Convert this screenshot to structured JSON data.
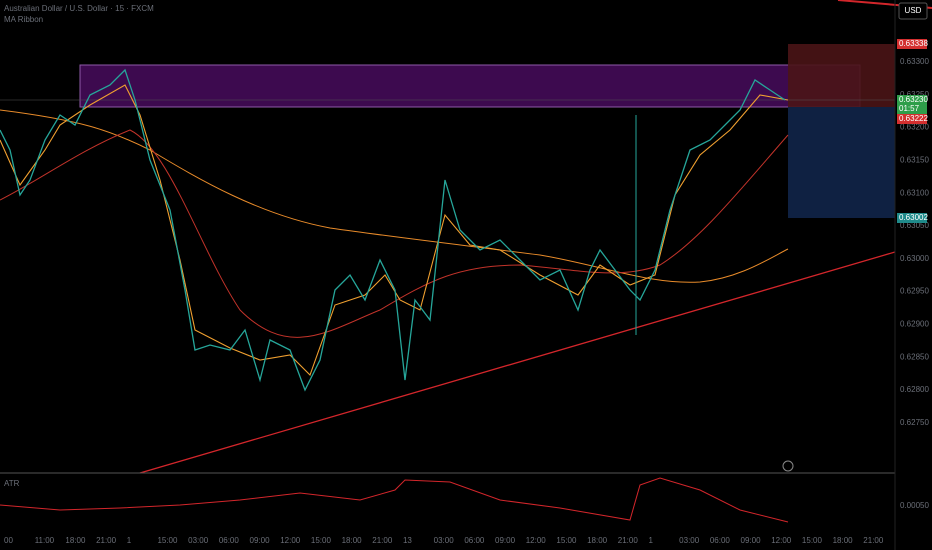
{
  "header": {
    "title": "Australian Dollar / U.S. Dollar · 15 · FXCM",
    "indicator": "MA Ribbon"
  },
  "price_axis": {
    "currency": "USD",
    "labels": [
      "0.63300",
      "0.63250",
      "0.63200",
      "0.63150",
      "0.63100",
      "0.63050",
      "0.63000",
      "0.62950",
      "0.62900",
      "0.62850",
      "0.62800",
      "0.62750"
    ]
  },
  "price_tags": [
    {
      "label": "0.63338"
    },
    {
      "label": "0.63230",
      "countdown": "01:57"
    },
    {
      "label": "0.63222"
    },
    {
      "label": "0.63002"
    }
  ],
  "time_axis": [
    "00",
    "11:00",
    "18:00",
    "21:00",
    "1",
    "15:00",
    "03:00",
    "06:00",
    "09:00",
    "12:00",
    "15:00",
    "18:00",
    "21:00",
    "13",
    "03:00",
    "06:00",
    "09:00",
    "12:00",
    "15:00",
    "18:00",
    "21:00",
    "1",
    "03:00",
    "06:00",
    "09:00",
    "12:00",
    "15:00",
    "18:00",
    "21:00"
  ],
  "indicator_pane": {
    "title": "ATR",
    "value": "0.00050"
  }
}
